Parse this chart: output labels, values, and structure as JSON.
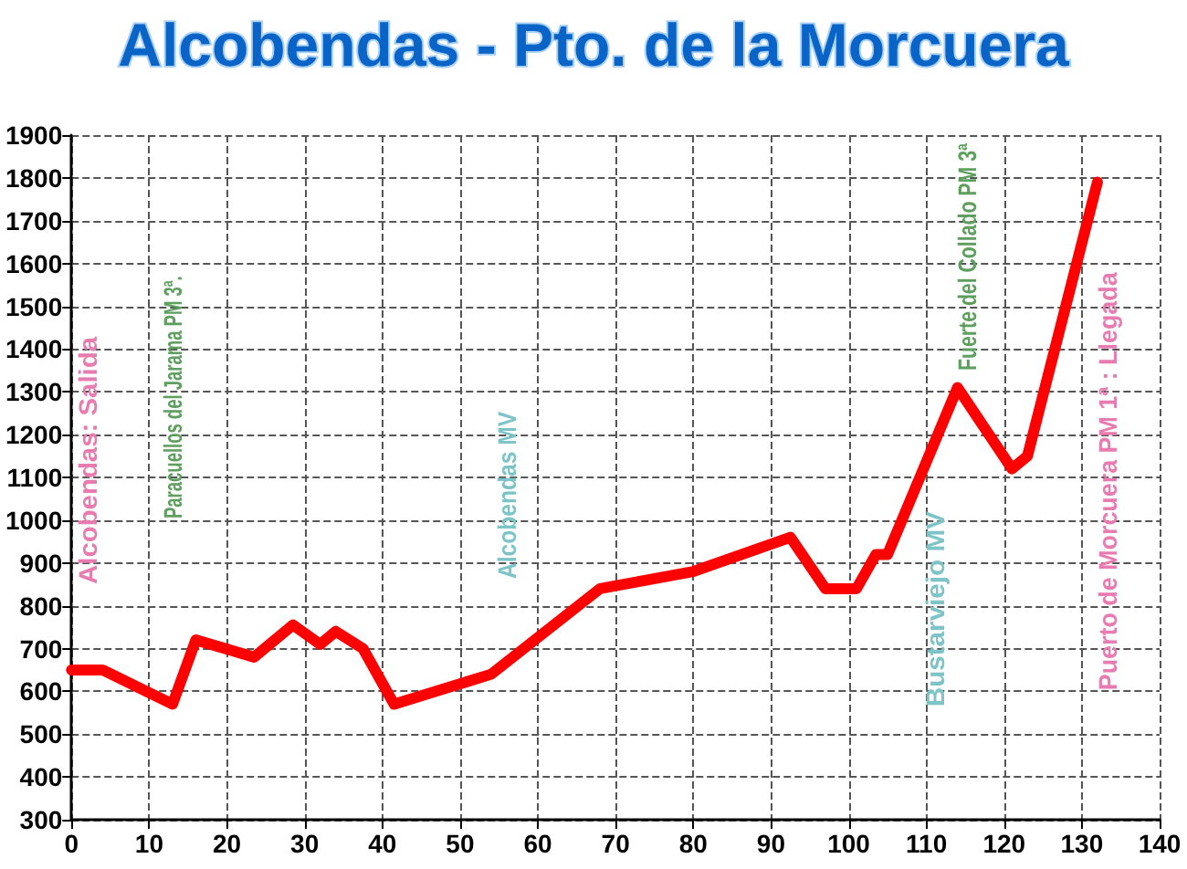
{
  "chart_data": {
    "type": "line",
    "title": "Alcobendas - Pto. de la Morcuera",
    "x": [
      0,
      4,
      13,
      16,
      23.5,
      28.5,
      32,
      34,
      37.5,
      41.5,
      54,
      68,
      80,
      92.5,
      97,
      101,
      103.5,
      105,
      114,
      121,
      123,
      132
    ],
    "series": [
      {
        "color": "#ff0000",
        "values": [
          650,
          650,
          570,
          720,
          680,
          755,
          710,
          740,
          700,
          570,
          640,
          840,
          880,
          960,
          840,
          840,
          920,
          920,
          1310,
          1120,
          1150,
          1790
        ]
      }
    ],
    "xlim": [
      0,
      140
    ],
    "xticks": [
      0,
      10,
      20,
      30,
      40,
      50,
      60,
      70,
      80,
      90,
      100,
      110,
      120,
      130,
      140
    ],
    "ylim": [
      300,
      1900
    ],
    "yticks": [
      300,
      400,
      500,
      600,
      700,
      800,
      900,
      1000,
      1100,
      1200,
      1300,
      1400,
      1500,
      1600,
      1700,
      1800,
      1900
    ],
    "grid": true,
    "marker": "none",
    "line_style": "solid",
    "annotations": [
      "Alcobendas: Salida",
      "Paracuellos del Jarama PM 3ª.",
      "Alcobendas MV",
      "Bustarviejo MV",
      "Fuerte del Collado PM 3ª",
      "Puerto de Morcuera PM 1ª : Llegada"
    ]
  }
}
